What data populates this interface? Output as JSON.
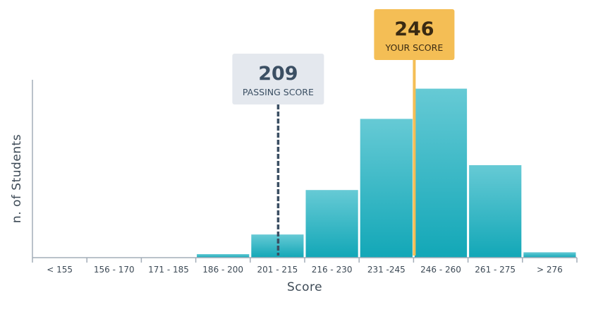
{
  "chart_data": {
    "type": "bar",
    "title": "",
    "xlabel": "Score",
    "ylabel": "n. of Students",
    "categories": [
      "< 155",
      "156 - 170",
      "171 - 185",
      "186 - 200",
      "201 - 215",
      "216 - 230",
      "231 -245",
      "246 - 260",
      "261 - 275",
      "> 276"
    ],
    "values": [
      0,
      0,
      0,
      2,
      13,
      38,
      78,
      95,
      52,
      3
    ],
    "ylim": [
      0,
      100
    ],
    "grid": false,
    "bar_color": "#27b3c2",
    "markers": [
      {
        "name": "passing",
        "value": "209",
        "label": "PASSING SCORE",
        "category_index": 4,
        "position_in_bin": 0.5,
        "style": "dashed",
        "color": "#3b4f63",
        "box_color": "#e4e8ee",
        "text_color": "#3b4f63"
      },
      {
        "name": "yours",
        "value": "246",
        "label": "YOUR SCORE",
        "category_index": 7,
        "position_in_bin": 0.0,
        "style": "solid",
        "color": "#f4be55",
        "box_color": "#f4be55",
        "text_color": "#3a2a12"
      }
    ]
  }
}
